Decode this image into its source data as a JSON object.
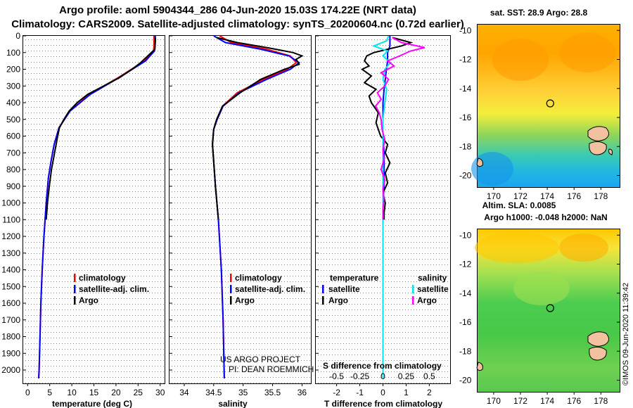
{
  "header": {
    "title_line1": "Argo profile: aoml 5904344_286 04-Jun-2020 15.03S 174.22E (NRT data)",
    "title_line2": "Climatology: CARS2009. Satellite-adjusted climatology: synTS_20200604.nc (0.72d earlier)"
  },
  "credits": {
    "project": "US ARGO PROJECT",
    "pi": "PI: DEAN ROEMMICH",
    "watermark": "©IMOS 09-Jun-2020 11:39:42"
  },
  "colors": {
    "climatology": "#ff0000",
    "satellite": "#0000ff",
    "argo": "#000000",
    "sat_salinity": "#00e5ee",
    "argo_salinity": "#ff00ff"
  },
  "chart_data": [
    {
      "id": "temperature",
      "type": "line",
      "xlabel": "temperature (deg C)",
      "xlim": [
        -1,
        31
      ],
      "ylim": [
        2080,
        0
      ],
      "xticks": [
        0,
        5,
        10,
        15,
        20,
        25,
        30
      ],
      "yticks": [
        0,
        100,
        200,
        300,
        400,
        500,
        600,
        700,
        800,
        900,
        1000,
        1100,
        1200,
        1300,
        1400,
        1500,
        1600,
        1700,
        1800,
        1900,
        2000
      ],
      "legend": [
        "climatology",
        "satellite-adj. clim.",
        "Argo"
      ],
      "series": [
        {
          "name": "climatology",
          "color": "#ff0000",
          "depth": [
            0,
            30,
            60,
            90,
            150,
            250,
            350,
            450,
            550,
            650,
            750,
            850,
            1000,
            1200,
            1400,
            1600,
            1800,
            2000,
            2050
          ],
          "values": [
            28.6,
            28.6,
            28.6,
            28.5,
            26.5,
            20.5,
            14.0,
            9.5,
            7.1,
            6.0,
            5.3,
            4.7,
            4.2,
            3.7,
            3.3,
            3.0,
            2.8,
            2.6,
            2.5
          ]
        },
        {
          "name": "satellite-adj. clim.",
          "color": "#0000ff",
          "depth": [
            0,
            30,
            60,
            90,
            150,
            250,
            350,
            450,
            550,
            650,
            750,
            850,
            1000,
            1200,
            1400,
            1600,
            1800,
            2000,
            2050
          ],
          "values": [
            28.9,
            28.9,
            28.8,
            28.7,
            26.7,
            20.7,
            14.2,
            9.6,
            7.1,
            6.0,
            5.3,
            4.7,
            4.2,
            3.7,
            3.3,
            3.0,
            2.8,
            2.6,
            2.5
          ]
        },
        {
          "name": "Argo",
          "color": "#000000",
          "depth": [
            10,
            40,
            80,
            120,
            160,
            200,
            250,
            300,
            350,
            400,
            450,
            500,
            550,
            600,
            700,
            800,
            900,
            1000,
            1100
          ],
          "values": [
            28.9,
            28.9,
            28.8,
            27.2,
            25.6,
            23.6,
            20.8,
            17.2,
            13.6,
            11.2,
            9.4,
            8.2,
            7.2,
            6.8,
            6.1,
            5.4,
            4.9,
            4.5,
            4.2
          ]
        }
      ]
    },
    {
      "id": "salinity",
      "type": "line",
      "xlabel": "salinity",
      "xlim": [
        33.75,
        36.15
      ],
      "ylim": [
        2080,
        0
      ],
      "xticks": [
        34,
        34.5,
        35,
        35.5,
        36
      ],
      "legend": [
        "climatology",
        "satellite-adj. clim.",
        "Argo"
      ],
      "series": [
        {
          "name": "climatology",
          "color": "#ff0000",
          "depth": [
            0,
            40,
            80,
            120,
            160,
            200,
            260,
            340,
            420,
            500,
            560,
            650,
            750,
            900,
            1100,
            1400,
            1700,
            2050
          ],
          "values": [
            34.6,
            34.8,
            35.4,
            35.8,
            35.9,
            35.75,
            35.35,
            34.9,
            34.65,
            34.55,
            34.5,
            34.48,
            34.5,
            34.53,
            34.58,
            34.63,
            34.66,
            34.68
          ]
        },
        {
          "name": "satellite-adj. clim.",
          "color": "#0000ff",
          "depth": [
            0,
            40,
            80,
            120,
            160,
            200,
            260,
            340,
            420,
            500,
            560,
            650,
            750,
            900,
            1100,
            1400,
            1700,
            2050
          ],
          "values": [
            34.5,
            34.7,
            35.3,
            35.78,
            35.95,
            35.8,
            35.4,
            34.93,
            34.66,
            34.56,
            34.5,
            34.48,
            34.5,
            34.53,
            34.58,
            34.63,
            34.66,
            34.68
          ]
        },
        {
          "name": "Argo",
          "color": "#000000",
          "depth": [
            10,
            40,
            70,
            100,
            120,
            140,
            170,
            200,
            260,
            340,
            420,
            500,
            560,
            650,
            750,
            900,
            1100
          ],
          "values": [
            34.55,
            34.9,
            35.4,
            35.85,
            36.0,
            35.9,
            35.95,
            35.7,
            35.3,
            34.95,
            34.65,
            34.55,
            34.5,
            34.48,
            34.5,
            34.53,
            34.58
          ]
        }
      ]
    },
    {
      "id": "difference",
      "type": "line",
      "xlabel": "T difference from climatology",
      "xlabel2": "S difference from climatology",
      "xlim": [
        -2.9,
        2.9
      ],
      "ylim": [
        2080,
        0
      ],
      "xticks": [
        -2,
        -1,
        0,
        1,
        2
      ],
      "xticks_s": [
        "-0.5",
        "-0.25",
        "0",
        "0.25",
        "0.5"
      ],
      "legend_temperature_title": "temperature",
      "legend_salinity_title": "salinity",
      "legend_temperature": [
        "satellite",
        "Argo"
      ],
      "legend_salinity": [
        "satellite",
        "Argo"
      ],
      "series": [
        {
          "name": "temperature satellite",
          "color": "#0000ff",
          "depth": [
            0,
            60,
            100,
            150,
            200,
            260,
            320,
            400,
            500,
            600,
            700,
            800,
            900,
            1000,
            1100
          ],
          "values": [
            0.3,
            0.3,
            0.2,
            0.2,
            0.15,
            0.1,
            0.05,
            0.0,
            0.0,
            0.0,
            0.05,
            0.05,
            0.05,
            0.0,
            0.0
          ]
        },
        {
          "name": "temperature Argo",
          "color": "#000000",
          "depth": [
            10,
            40,
            60,
            80,
            100,
            120,
            150,
            180,
            200,
            240,
            280,
            320,
            360,
            400,
            460,
            520,
            600,
            650,
            700,
            760,
            820,
            880,
            940,
            1000,
            1060,
            1100
          ],
          "values": [
            0.4,
            1.2,
            0.8,
            0.2,
            -0.4,
            -0.7,
            -0.8,
            -0.6,
            -0.9,
            -0.5,
            -0.8,
            -0.3,
            -0.6,
            -0.5,
            -0.2,
            -0.3,
            -0.1,
            0.2,
            0.1,
            0.3,
            0.1,
            0.2,
            0.0,
            0.1,
            0.05,
            0.05
          ]
        },
        {
          "name": "salinity satellite",
          "color": "#00e5ee",
          "depth": [
            0,
            30,
            60,
            90,
            120,
            160,
            200,
            260,
            320,
            400,
            500,
            700,
            1000,
            1400,
            1800,
            2050
          ],
          "values": [
            0.06,
            0.04,
            -0.1,
            0.05,
            0.0,
            0.08,
            0.02,
            0.0,
            0.04,
            0.02,
            0.0,
            0.0,
            0.0,
            0.0,
            0.0,
            0.0
          ]
        },
        {
          "name": "salinity Argo",
          "color": "#ff00ff",
          "depth": [
            10,
            40,
            70,
            90,
            120,
            150,
            180,
            220,
            260,
            300,
            340,
            380,
            420,
            460,
            500,
            560,
            620,
            680,
            740,
            800,
            860,
            920,
            980,
            1040,
            1100
          ],
          "values": [
            0.1,
            0.2,
            0.45,
            0.3,
            0.18,
            0.05,
            0.12,
            -0.02,
            0.06,
            0.02,
            -0.06,
            -0.02,
            -0.08,
            -0.04,
            -0.02,
            -0.01,
            0.02,
            0.0,
            0.01,
            -0.02,
            0.02,
            0.0,
            0.01,
            0.0,
            0.0
          ]
        }
      ]
    },
    {
      "id": "sst-map",
      "type": "heatmap",
      "title": "sat. SST: 28.9 Argo: 28.8",
      "xticks": [
        170,
        172,
        174,
        176,
        178
      ],
      "yticks": [
        -10,
        -12,
        -14,
        -16,
        -18,
        -20
      ],
      "xlim": [
        168.8,
        179.4
      ],
      "ylim": [
        -20.8,
        -9.6
      ],
      "marker": {
        "lon": 174.22,
        "lat": -15.03
      }
    },
    {
      "id": "sla-map",
      "type": "heatmap",
      "title": "Altim. SLA: 0.0085",
      "subtitle": "Argo h1000: -0.048 h2000: NaN",
      "xticks": [
        170,
        172,
        174,
        176,
        178
      ],
      "yticks": [
        -10,
        -12,
        -14,
        -16,
        -18,
        -20
      ],
      "xlim": [
        168.8,
        179.4
      ],
      "ylim": [
        -20.8,
        -9.6
      ],
      "marker": {
        "lon": 174.22,
        "lat": -15.03
      }
    }
  ]
}
